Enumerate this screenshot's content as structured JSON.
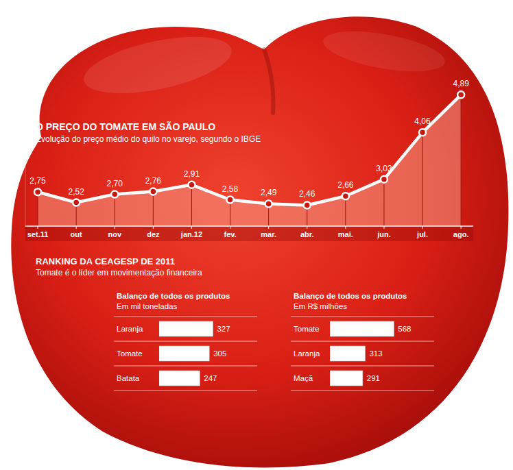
{
  "header": {
    "title": "RANKING DA CEAGESP DE 2011",
    "subtitle": "Tomate é o líder em movimentação financeira"
  },
  "chart_data": [
    {
      "type": "line",
      "title": "O PREÇO DO TOMATE EM SÃO PAULO",
      "subtitle": "Evolução do preço médio do quilo no varejo, segundo o IBGE",
      "categories": [
        "set.11",
        "out",
        "nov",
        "dez",
        "jan.12",
        "fev.",
        "mar.",
        "abr.",
        "mai.",
        "jun.",
        "jul.",
        "ago."
      ],
      "values": [
        2.75,
        2.52,
        2.7,
        2.76,
        2.91,
        2.58,
        2.49,
        2.46,
        2.66,
        3.03,
        4.06,
        4.89
      ],
      "value_labels": [
        "2,75",
        "2,52",
        "2,70",
        "2,76",
        "2,91",
        "2,58",
        "2,49",
        "2,46",
        "2,66",
        "3,03",
        "4,06",
        "4,89"
      ],
      "data_labels": true,
      "color": "#ffffff",
      "ylim": [
        2,
        5
      ],
      "tick_labels": "x"
    },
    {
      "type": "bar",
      "title": "Balanço de todos os produtos",
      "subtitle": "Em mil toneladas",
      "orientation": "horizontal",
      "categories": [
        "Laranja",
        "Tomate",
        "Batata"
      ],
      "values": [
        327,
        305,
        247
      ],
      "data_labels": true,
      "color": "#ffffff",
      "xlim": [
        0,
        400
      ],
      "tick_labels": false
    },
    {
      "type": "bar",
      "title": "Balanço de todos os produtos",
      "subtitle": "Em R$ milhões",
      "orientation": "horizontal",
      "categories": [
        "Tomate",
        "Laranja",
        "Maçã"
      ],
      "values": [
        568,
        313,
        291
      ],
      "data_labels": true,
      "color": "#ffffff",
      "xlim": [
        0,
        700
      ],
      "tick_labels": false
    }
  ]
}
